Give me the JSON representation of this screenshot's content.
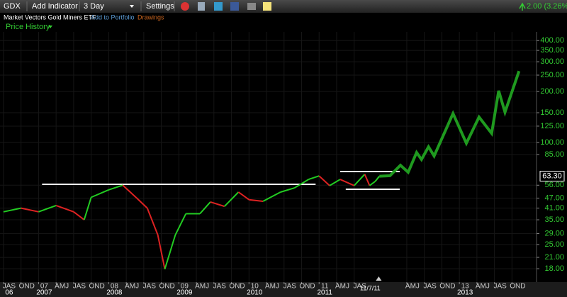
{
  "toolbar": {
    "symbol": "GDX",
    "add_indicator": "Add Indicator",
    "period": "3 Day",
    "settings": "Settings",
    "change": "2.00 (3.26%)"
  },
  "subheader": {
    "name": "Market Vectors Gold Miners ETF",
    "add_to_portfolio": "Add to Portfolio",
    "drawings": "Drawings"
  },
  "chart_data": {
    "type": "line",
    "title": "Price History",
    "log_scale": true,
    "grid": true,
    "xlim": [
      2006.45,
      2014.1
    ],
    "ylim": [
      15,
      450
    ],
    "yticks": [
      {
        "value": 400,
        "label": "400.00"
      },
      {
        "value": 350,
        "label": "350.00"
      },
      {
        "value": 300,
        "label": "300.00"
      },
      {
        "value": 250,
        "label": "250.00"
      },
      {
        "value": 200,
        "label": "200.00"
      },
      {
        "value": 150,
        "label": "150.00"
      },
      {
        "value": 125,
        "label": "125.00"
      },
      {
        "value": 100,
        "label": "100.00"
      },
      {
        "value": 85,
        "label": "85.00"
      },
      {
        "value": 56,
        "label": "56.00"
      },
      {
        "value": 47,
        "label": "47.00"
      },
      {
        "value": 41,
        "label": "41.00"
      },
      {
        "value": 35,
        "label": "35.00"
      },
      {
        "value": 29,
        "label": "29.00"
      },
      {
        "value": 25,
        "label": "25.00"
      },
      {
        "value": 21,
        "label": "21.00"
      },
      {
        "value": 18,
        "label": "18.00"
      }
    ],
    "xticks": [
      {
        "value": 2006.5,
        "label": "JAS"
      },
      {
        "value": 2006.75,
        "label": "OND"
      },
      {
        "value": 2007,
        "label": "07"
      },
      {
        "value": 2007.25,
        "label": "AMJ"
      },
      {
        "value": 2007.5,
        "label": "JAS"
      },
      {
        "value": 2007.75,
        "label": "OND"
      },
      {
        "value": 2008,
        "label": "08"
      },
      {
        "value": 2008.25,
        "label": "AMJ"
      },
      {
        "value": 2008.5,
        "label": "JAS"
      },
      {
        "value": 2008.75,
        "label": "OND"
      },
      {
        "value": 2009,
        "label": "09"
      },
      {
        "value": 2009.25,
        "label": "AMJ"
      },
      {
        "value": 2009.5,
        "label": "JAS"
      },
      {
        "value": 2009.75,
        "label": "OND"
      },
      {
        "value": 2010,
        "label": "10"
      },
      {
        "value": 2010.25,
        "label": "AMJ"
      },
      {
        "value": 2010.5,
        "label": "JAS"
      },
      {
        "value": 2010.75,
        "label": "OND"
      },
      {
        "value": 2011,
        "label": "11"
      },
      {
        "value": 2011.25,
        "label": "AMJ"
      },
      {
        "value": 2011.5,
        "label": "JAS"
      },
      {
        "value": 2012.25,
        "label": "AMJ"
      },
      {
        "value": 2012.5,
        "label": "JAS"
      },
      {
        "value": 2012.75,
        "label": "OND"
      },
      {
        "value": 2013,
        "label": "13"
      },
      {
        "value": 2013.25,
        "label": "AMJ"
      },
      {
        "value": 2013.5,
        "label": "JAS"
      },
      {
        "value": 2013.75,
        "label": "OND"
      }
    ],
    "year_labels": [
      {
        "value": 2006.5,
        "label": "06"
      },
      {
        "value": 2007,
        "label": "2007"
      },
      {
        "value": 2008,
        "label": "2008"
      },
      {
        "value": 2009,
        "label": "2009"
      },
      {
        "value": 2010,
        "label": "2010"
      },
      {
        "value": 2011,
        "label": "2011"
      },
      {
        "value": 2013,
        "label": "2013"
      }
    ],
    "series": [
      {
        "color": "#22cc22",
        "down_color": "#dd2222",
        "x": [
          2006.5,
          2006.75,
          2007,
          2007.25,
          2007.5,
          2007.65,
          2007.75,
          2008,
          2008.2,
          2008.4,
          2008.55,
          2008.7,
          2008.8,
          2008.95,
          2009.1,
          2009.3,
          2009.45,
          2009.65,
          2009.85,
          2010,
          2010.2,
          2010.45,
          2010.65,
          2010.85,
          2011,
          2011.15,
          2011.3,
          2011.5,
          2011.65,
          2011.72,
          2011.8,
          2011.86
        ],
        "values": [
          39,
          41,
          39,
          42.5,
          39,
          35,
          47.5,
          52.6,
          56,
          47,
          41,
          28.5,
          17.9,
          28.5,
          38,
          38,
          44.6,
          42,
          51,
          46,
          45,
          51,
          54,
          60.6,
          63.5,
          55.7,
          60.6,
          55.7,
          65,
          55.7,
          59,
          63.3
        ]
      },
      {
        "color": "#1f9a1f",
        "x": [
          2011.86,
          2012.01,
          2012.16,
          2012.27,
          2012.39,
          2012.46,
          2012.56,
          2012.64,
          2012.91,
          2013.1,
          2013.28,
          2013.46,
          2013.56,
          2013.65,
          2013.85
        ],
        "values": [
          63.3,
          63.7,
          73.5,
          66.8,
          87.4,
          79.4,
          94.4,
          83.3,
          148.5,
          99,
          141.5,
          113.3,
          202,
          151,
          264
        ]
      }
    ],
    "trendlines": [
      {
        "y": 56.7,
        "x": [
          2007.05,
          2010.95
        ]
      },
      {
        "y": 67.4,
        "x": [
          2011.3,
          2012.15
        ]
      },
      {
        "y": 53,
        "x": [
          2011.38,
          2012.15
        ]
      }
    ],
    "last_price": {
      "value": 63.3,
      "label": "63.30"
    },
    "date_marker": {
      "x": 2011.85,
      "label": "11/7/11"
    }
  }
}
